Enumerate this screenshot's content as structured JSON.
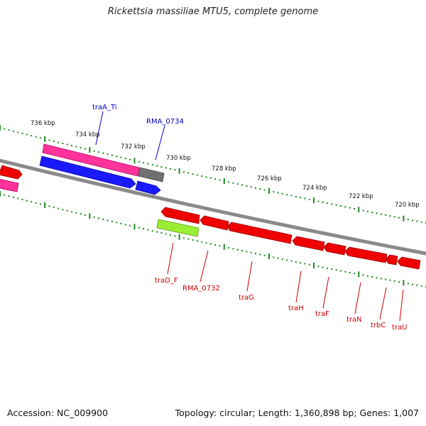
{
  "title": "Rickettsia massiliae MTU5, complete genome",
  "footer": {
    "accession": "Accession: NC_009900",
    "stats": "Topology: circular; Length: 1,360,898 bp; Genes: 1,007"
  },
  "colors": {
    "backbone": "#8a8a8a",
    "ticks": "#1a8a1a",
    "forward_gene_label": "#0000cc",
    "reverse_gene_label": "#cc0000",
    "pink": "#ff3399",
    "blue": "#1a1aff",
    "grey": "#707070",
    "red": "#ee0000",
    "lime": "#99ee33"
  },
  "scale_labels": [
    "736 kbp",
    "734 kbp",
    "732 kbp",
    "730 kbp",
    "728 kbp",
    "726 kbp",
    "724 kbp",
    "722 kbp",
    "720 kbp"
  ],
  "gene_labels_top": [
    "traA_Ti",
    "RMA_0734"
  ],
  "gene_labels_bottom": [
    "traD_F",
    "RMA_0732",
    "traG",
    "traH",
    "traF",
    "traN",
    "trbC",
    "traU"
  ]
}
